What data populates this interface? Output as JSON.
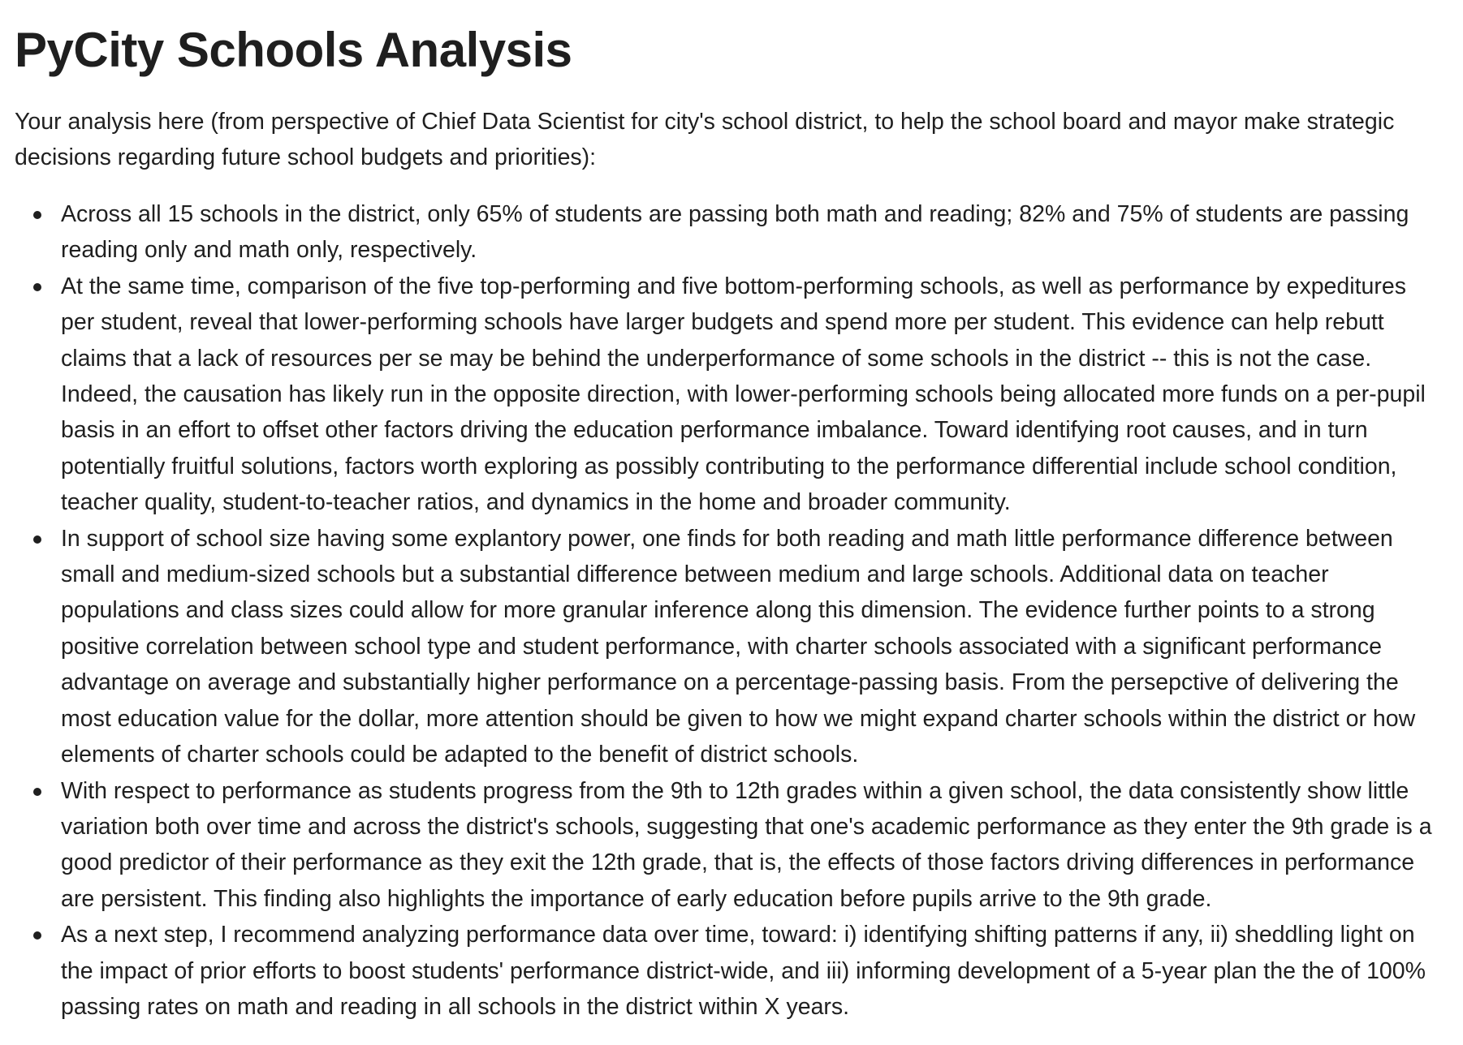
{
  "document": {
    "title": "PyCity Schools Analysis",
    "intro": "Your analysis here (from perspective of Chief Data Scientist for city's school district, to help the school board and mayor make strategic decisions regarding future school budgets and priorities):",
    "bullets": [
      "Across all 15 schools in the district, only 65% of students are passing both math and reading; 82% and 75% of students are passing reading only and math only, respectively.",
      "At the same time, comparison of the five top-performing and five bottom-performing schools, as well as performance by expeditures per student, reveal that lower-performing schools have larger budgets and spend more per student. This evidence can help rebutt claims that a lack of resources per se may be behind the underperformance of some schools in the district -- this is not the case. Indeed, the causation has likely run in the opposite direction, with lower-performing schools being allocated more funds on a per-pupil basis in an effort to offset other factors driving the education performance imbalance. Toward identifying root causes, and in turn potentially fruitful solutions, factors worth exploring as possibly contributing to the performance differential include school condition, teacher quality, student-to-teacher ratios, and dynamics in the home and broader community.",
      "In support of school size having some explantory power, one finds for both reading and math little performance difference between small and medium-sized schools but a substantial difference between medium and large schools. Additional data on teacher populations and class sizes could allow for more granular inference along this dimension. The evidence further points to a strong positive correlation between school type and student performance, with charter schools associated with a significant performance advantage on average and substantially higher performance on a percentage-passing basis. From the persepctive of delivering the most education value for the dollar, more attention should be given to how we might expand charter schools within the district or how elements of charter schools could be adapted to the benefit of district schools.",
      "With respect to performance as students progress from the 9th to 12th grades within a given school, the data consistently show little variation both over time and across the district's schools, suggesting that one's academic performance as they enter the 9th grade is a good predictor of their performance as they exit the 12th grade, that is, the effects of those factors driving differences in performance are persistent. This finding also highlights the importance of early education before pupils arrive to the 9th grade.",
      "As a next step, I recommend analyzing performance data over time, toward: i) identifying shifting patterns if any, ii) sheddling light on the impact of prior efforts to boost students' performance district-wide, and iii) informing development of a 5-year plan the the of 100% passing rates on math and reading in all schools in the district within X years."
    ]
  }
}
